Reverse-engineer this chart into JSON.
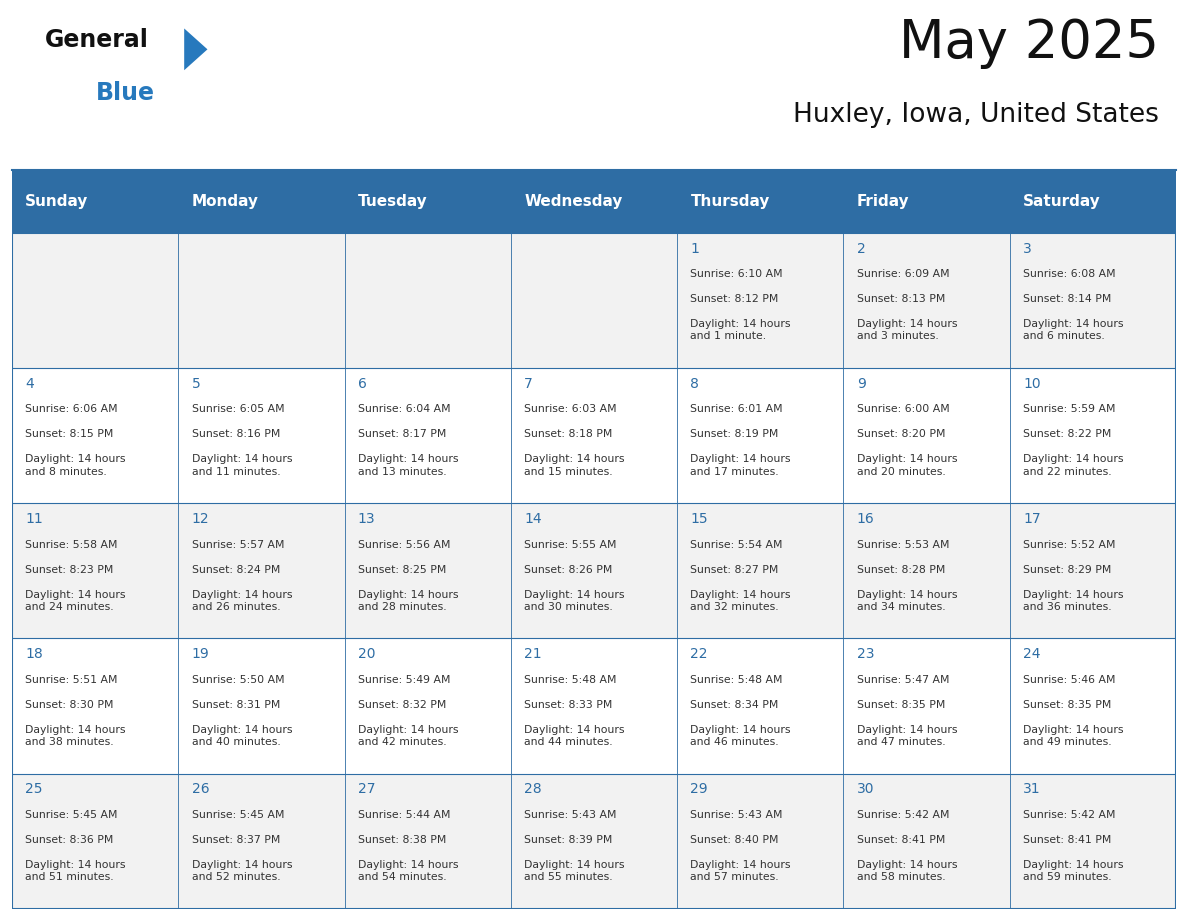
{
  "title": "May 2025",
  "subtitle": "Huxley, Iowa, United States",
  "days_of_week": [
    "Sunday",
    "Monday",
    "Tuesday",
    "Wednesday",
    "Thursday",
    "Friday",
    "Saturday"
  ],
  "header_bg": "#2E6DA4",
  "header_text": "#FFFFFF",
  "cell_bg_odd": "#F2F2F2",
  "cell_bg_even": "#FFFFFF",
  "day_number_color": "#2E6DA4",
  "cell_text_color": "#333333",
  "line_color": "#2E6DA4",
  "logo_general_color": "#1A1A1A",
  "logo_blue_color": "#2779BD",
  "calendar_data": [
    [
      {
        "day": null,
        "sunrise": null,
        "sunset": null,
        "daylight": null
      },
      {
        "day": null,
        "sunrise": null,
        "sunset": null,
        "daylight": null
      },
      {
        "day": null,
        "sunrise": null,
        "sunset": null,
        "daylight": null
      },
      {
        "day": null,
        "sunrise": null,
        "sunset": null,
        "daylight": null
      },
      {
        "day": 1,
        "sunrise": "6:10 AM",
        "sunset": "8:12 PM",
        "daylight": "14 hours\nand 1 minute."
      },
      {
        "day": 2,
        "sunrise": "6:09 AM",
        "sunset": "8:13 PM",
        "daylight": "14 hours\nand 3 minutes."
      },
      {
        "day": 3,
        "sunrise": "6:08 AM",
        "sunset": "8:14 PM",
        "daylight": "14 hours\nand 6 minutes."
      }
    ],
    [
      {
        "day": 4,
        "sunrise": "6:06 AM",
        "sunset": "8:15 PM",
        "daylight": "14 hours\nand 8 minutes."
      },
      {
        "day": 5,
        "sunrise": "6:05 AM",
        "sunset": "8:16 PM",
        "daylight": "14 hours\nand 11 minutes."
      },
      {
        "day": 6,
        "sunrise": "6:04 AM",
        "sunset": "8:17 PM",
        "daylight": "14 hours\nand 13 minutes."
      },
      {
        "day": 7,
        "sunrise": "6:03 AM",
        "sunset": "8:18 PM",
        "daylight": "14 hours\nand 15 minutes."
      },
      {
        "day": 8,
        "sunrise": "6:01 AM",
        "sunset": "8:19 PM",
        "daylight": "14 hours\nand 17 minutes."
      },
      {
        "day": 9,
        "sunrise": "6:00 AM",
        "sunset": "8:20 PM",
        "daylight": "14 hours\nand 20 minutes."
      },
      {
        "day": 10,
        "sunrise": "5:59 AM",
        "sunset": "8:22 PM",
        "daylight": "14 hours\nand 22 minutes."
      }
    ],
    [
      {
        "day": 11,
        "sunrise": "5:58 AM",
        "sunset": "8:23 PM",
        "daylight": "14 hours\nand 24 minutes."
      },
      {
        "day": 12,
        "sunrise": "5:57 AM",
        "sunset": "8:24 PM",
        "daylight": "14 hours\nand 26 minutes."
      },
      {
        "day": 13,
        "sunrise": "5:56 AM",
        "sunset": "8:25 PM",
        "daylight": "14 hours\nand 28 minutes."
      },
      {
        "day": 14,
        "sunrise": "5:55 AM",
        "sunset": "8:26 PM",
        "daylight": "14 hours\nand 30 minutes."
      },
      {
        "day": 15,
        "sunrise": "5:54 AM",
        "sunset": "8:27 PM",
        "daylight": "14 hours\nand 32 minutes."
      },
      {
        "day": 16,
        "sunrise": "5:53 AM",
        "sunset": "8:28 PM",
        "daylight": "14 hours\nand 34 minutes."
      },
      {
        "day": 17,
        "sunrise": "5:52 AM",
        "sunset": "8:29 PM",
        "daylight": "14 hours\nand 36 minutes."
      }
    ],
    [
      {
        "day": 18,
        "sunrise": "5:51 AM",
        "sunset": "8:30 PM",
        "daylight": "14 hours\nand 38 minutes."
      },
      {
        "day": 19,
        "sunrise": "5:50 AM",
        "sunset": "8:31 PM",
        "daylight": "14 hours\nand 40 minutes."
      },
      {
        "day": 20,
        "sunrise": "5:49 AM",
        "sunset": "8:32 PM",
        "daylight": "14 hours\nand 42 minutes."
      },
      {
        "day": 21,
        "sunrise": "5:48 AM",
        "sunset": "8:33 PM",
        "daylight": "14 hours\nand 44 minutes."
      },
      {
        "day": 22,
        "sunrise": "5:48 AM",
        "sunset": "8:34 PM",
        "daylight": "14 hours\nand 46 minutes."
      },
      {
        "day": 23,
        "sunrise": "5:47 AM",
        "sunset": "8:35 PM",
        "daylight": "14 hours\nand 47 minutes."
      },
      {
        "day": 24,
        "sunrise": "5:46 AM",
        "sunset": "8:35 PM",
        "daylight": "14 hours\nand 49 minutes."
      }
    ],
    [
      {
        "day": 25,
        "sunrise": "5:45 AM",
        "sunset": "8:36 PM",
        "daylight": "14 hours\nand 51 minutes."
      },
      {
        "day": 26,
        "sunrise": "5:45 AM",
        "sunset": "8:37 PM",
        "daylight": "14 hours\nand 52 minutes."
      },
      {
        "day": 27,
        "sunrise": "5:44 AM",
        "sunset": "8:38 PM",
        "daylight": "14 hours\nand 54 minutes."
      },
      {
        "day": 28,
        "sunrise": "5:43 AM",
        "sunset": "8:39 PM",
        "daylight": "14 hours\nand 55 minutes."
      },
      {
        "day": 29,
        "sunrise": "5:43 AM",
        "sunset": "8:40 PM",
        "daylight": "14 hours\nand 57 minutes."
      },
      {
        "day": 30,
        "sunrise": "5:42 AM",
        "sunset": "8:41 PM",
        "daylight": "14 hours\nand 58 minutes."
      },
      {
        "day": 31,
        "sunrise": "5:42 AM",
        "sunset": "8:41 PM",
        "daylight": "14 hours\nand 59 minutes."
      }
    ]
  ]
}
